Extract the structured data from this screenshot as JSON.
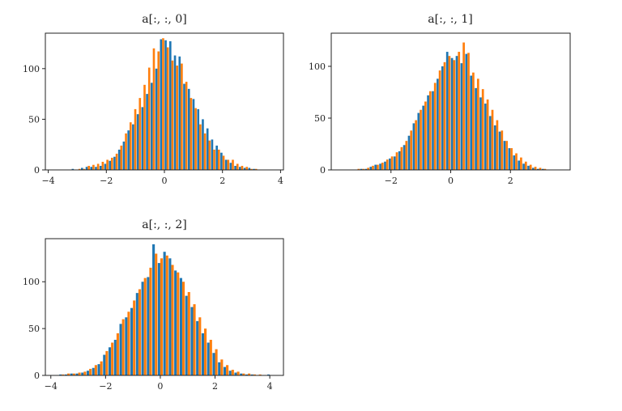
{
  "chart_data": [
    {
      "type": "histogram",
      "title": "a[:, :, 0]",
      "xlim": [
        -4.1,
        4.1
      ],
      "ylim": [
        0,
        135
      ],
      "xticks": [
        -4,
        -2,
        0,
        2,
        4
      ],
      "yticks": [
        0,
        50,
        100
      ],
      "x_tick_labels": [
        "−4",
        "−2",
        "0",
        "2",
        "4"
      ],
      "y_tick_labels": [
        "0",
        "50",
        "100"
      ],
      "bins": {
        "start": -3.2,
        "end": 3.2,
        "width": 0.16
      },
      "series": [
        {
          "color": "#1f77b4",
          "values": [
            1,
            0,
            2,
            3,
            3,
            3,
            4,
            6,
            9,
            13,
            20,
            28,
            39,
            45,
            55,
            62,
            75,
            86,
            100,
            129,
            128,
            127,
            113,
            112,
            85,
            80,
            70,
            60,
            50,
            41,
            30,
            24,
            17,
            10,
            7,
            4,
            3,
            2,
            2,
            1
          ]
        },
        {
          "color": "#ff7f0e",
          "values": [
            0,
            1,
            1,
            4,
            5,
            6,
            8,
            10,
            12,
            16,
            24,
            36,
            47,
            60,
            71,
            84,
            101,
            120,
            117,
            130,
            121,
            108,
            103,
            105,
            87,
            71,
            61,
            45,
            36,
            29,
            20,
            20,
            14,
            10,
            10,
            6,
            4,
            3,
            1,
            1
          ]
        }
      ]
    },
    {
      "type": "histogram",
      "title": "a[:, :, 1]",
      "xlim": [
        -4.0,
        4.0
      ],
      "ylim": [
        0,
        132
      ],
      "xticks": [
        -2,
        0,
        2
      ],
      "yticks": [
        0,
        50,
        100
      ],
      "x_tick_labels": [
        "−2",
        "0",
        "2"
      ],
      "y_tick_labels": [
        "0",
        "50",
        "100"
      ],
      "bins": {
        "start": -3.2,
        "end": 3.2,
        "width": 0.16
      },
      "series": [
        {
          "color": "#1f77b4",
          "values": [
            0,
            1,
            1,
            3,
            5,
            6,
            8,
            11,
            13,
            18,
            24,
            33,
            45,
            55,
            62,
            72,
            76,
            88,
            100,
            114,
            108,
            110,
            103,
            112,
            91,
            79,
            70,
            64,
            52,
            43,
            37,
            28,
            21,
            14,
            9,
            6,
            4,
            2,
            1,
            1
          ]
        },
        {
          "color": "#ff7f0e",
          "values": [
            1,
            1,
            2,
            4,
            5,
            7,
            10,
            13,
            17,
            22,
            28,
            38,
            48,
            58,
            66,
            76,
            84,
            96,
            104,
            110,
            106,
            114,
            123,
            113,
            94,
            88,
            78,
            68,
            58,
            48,
            38,
            28,
            21,
            16,
            12,
            8,
            5,
            3,
            2,
            1
          ]
        }
      ]
    },
    {
      "type": "histogram",
      "title": "a[:, :, 2]",
      "xlim": [
        -4.2,
        4.5
      ],
      "ylim": [
        0,
        146
      ],
      "xticks": [
        -4,
        -2,
        0,
        2,
        4
      ],
      "yticks": [
        0,
        50,
        100
      ],
      "x_tick_labels": [
        "−4",
        "−2",
        "0",
        "2",
        "4"
      ],
      "y_tick_labels": [
        "0",
        "50",
        "100"
      ],
      "bins": {
        "start": -3.9,
        "end": 4.1,
        "width": 0.2
      },
      "series": [
        {
          "color": "#1f77b4",
          "values": [
            0,
            1,
            1,
            2,
            2,
            3,
            5,
            8,
            12,
            22,
            30,
            38,
            55,
            62,
            72,
            88,
            100,
            105,
            140,
            120,
            132,
            125,
            112,
            104,
            85,
            73,
            58,
            45,
            35,
            24,
            14,
            9,
            5,
            3,
            2,
            1,
            1,
            0,
            0,
            1
          ]
        },
        {
          "color": "#ff7f0e",
          "values": [
            0,
            1,
            2,
            2,
            3,
            4,
            7,
            11,
            15,
            26,
            35,
            45,
            60,
            68,
            80,
            92,
            104,
            115,
            130,
            125,
            128,
            118,
            110,
            100,
            89,
            76,
            62,
            50,
            38,
            28,
            17,
            11,
            6,
            4,
            2,
            2,
            1,
            1,
            0,
            0
          ]
        }
      ]
    }
  ]
}
